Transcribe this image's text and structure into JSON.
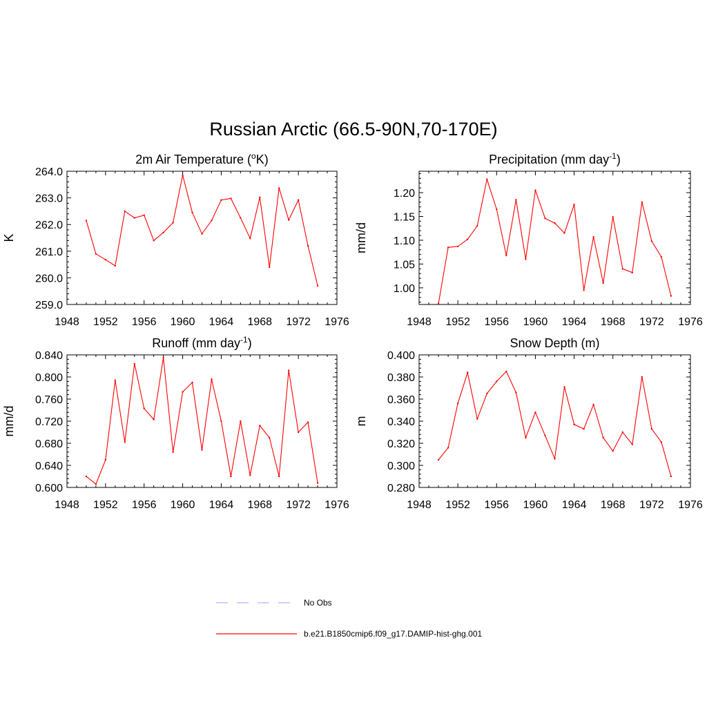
{
  "title": "Russian Arctic (66.5-90N,70-170E)",
  "colors": {
    "model": "#ff0000",
    "obs": "#b3b3ff",
    "axis": "#000000"
  },
  "legend": {
    "placement": "bottom-center",
    "items": [
      {
        "label": "No Obs",
        "style": "dashed",
        "color": "#b3b3ff"
      },
      {
        "label": "b.e21.B1850cmip6.f09_g17.DAMIP-hist-ghg.001",
        "style": "solid",
        "color": "#ff0000"
      }
    ]
  },
  "chart_data": [
    {
      "type": "line",
      "title": "2m Air Temperature (",
      "title_sup": "o",
      "title_tail": "K)",
      "ylabel": "K",
      "xlim": [
        1948,
        1976
      ],
      "ylim": [
        259.0,
        264.0
      ],
      "xticks": [
        "1948",
        "1952",
        "1956",
        "1960",
        "1964",
        "1968",
        "1972",
        "1976"
      ],
      "yticks": [
        "259.0",
        "260.0",
        "261.0",
        "262.0",
        "263.0",
        "264.0"
      ],
      "x": [
        1950,
        1951,
        1952,
        1953,
        1954,
        1955,
        1956,
        1957,
        1958,
        1959,
        1960,
        1961,
        1962,
        1963,
        1964,
        1965,
        1966,
        1967,
        1968,
        1969,
        1970,
        1971,
        1972,
        1973,
        1974
      ],
      "series": [
        {
          "name": "b.e21.B1850cmip6.f09_g17.DAMIP-hist-ghg.001",
          "values": [
            262.15,
            260.9,
            260.68,
            260.45,
            262.5,
            262.25,
            262.35,
            261.4,
            261.7,
            262.07,
            263.85,
            262.45,
            261.65,
            262.15,
            262.92,
            262.98,
            262.25,
            261.48,
            263.02,
            260.4,
            263.37,
            262.17,
            262.92,
            261.2,
            259.7
          ]
        }
      ]
    },
    {
      "type": "line",
      "title": "Precipitation (mm day",
      "title_sup": "-1",
      "title_tail": ")",
      "ylabel": "mm/d",
      "xlim": [
        1948,
        1976
      ],
      "ylim": [
        0.965,
        1.245
      ],
      "xticks": [
        "1948",
        "1952",
        "1956",
        "1960",
        "1964",
        "1968",
        "1972",
        "1976"
      ],
      "yticks": [
        "1.00",
        "1.05",
        "1.10",
        "1.15",
        "1.20"
      ],
      "x": [
        1950,
        1951,
        1952,
        1953,
        1954,
        1955,
        1956,
        1957,
        1958,
        1959,
        1960,
        1961,
        1962,
        1963,
        1964,
        1965,
        1966,
        1967,
        1968,
        1969,
        1970,
        1971,
        1972,
        1973,
        1974
      ],
      "series": [
        {
          "name": "b.e21.B1850cmip6.f09_g17.DAMIP-hist-ghg.001",
          "values": [
            0.967,
            1.085,
            1.087,
            1.102,
            1.13,
            1.228,
            1.165,
            1.068,
            1.185,
            1.06,
            1.205,
            1.146,
            1.136,
            1.115,
            1.175,
            0.995,
            1.107,
            1.01,
            1.149,
            1.04,
            1.032,
            1.18,
            1.098,
            1.065,
            0.983
          ]
        }
      ]
    },
    {
      "type": "line",
      "title": "Runoff (mm day",
      "title_sup": "-1",
      "title_tail": ")",
      "ylabel": "mm/d",
      "xlim": [
        1948,
        1976
      ],
      "ylim": [
        0.6,
        0.84
      ],
      "xticks": [
        "1948",
        "1952",
        "1956",
        "1960",
        "1964",
        "1968",
        "1972",
        "1976"
      ],
      "yticks": [
        "0.600",
        "0.640",
        "0.680",
        "0.720",
        "0.760",
        "0.800",
        "0.840"
      ],
      "x": [
        1950,
        1951,
        1952,
        1953,
        1954,
        1955,
        1956,
        1957,
        1958,
        1959,
        1960,
        1961,
        1962,
        1963,
        1964,
        1965,
        1966,
        1967,
        1968,
        1969,
        1970,
        1971,
        1972,
        1973,
        1974
      ],
      "series": [
        {
          "name": "b.e21.B1850cmip6.f09_g17.DAMIP-hist-ghg.001",
          "values": [
            0.62,
            0.606,
            0.65,
            0.794,
            0.682,
            0.824,
            0.743,
            0.723,
            0.835,
            0.664,
            0.773,
            0.79,
            0.668,
            0.796,
            0.72,
            0.62,
            0.72,
            0.622,
            0.712,
            0.69,
            0.62,
            0.812,
            0.7,
            0.718,
            0.608
          ]
        }
      ]
    },
    {
      "type": "line",
      "title": "Snow Depth (m)",
      "title_sup": "",
      "title_tail": "",
      "ylabel": "m",
      "xlim": [
        1948,
        1976
      ],
      "ylim": [
        0.28,
        0.4
      ],
      "xticks": [
        "1948",
        "1952",
        "1956",
        "1960",
        "1964",
        "1968",
        "1972",
        "1976"
      ],
      "yticks": [
        "0.280",
        "0.300",
        "0.320",
        "0.340",
        "0.360",
        "0.380",
        "0.400"
      ],
      "x": [
        1950,
        1951,
        1952,
        1953,
        1954,
        1955,
        1956,
        1957,
        1958,
        1959,
        1960,
        1961,
        1962,
        1963,
        1964,
        1965,
        1966,
        1967,
        1968,
        1969,
        1970,
        1971,
        1972,
        1973,
        1974
      ],
      "series": [
        {
          "name": "b.e21.B1850cmip6.f09_g17.DAMIP-hist-ghg.001",
          "values": [
            0.305,
            0.316,
            0.356,
            0.384,
            0.342,
            0.365,
            0.376,
            0.385,
            0.366,
            0.325,
            0.348,
            0.327,
            0.306,
            0.371,
            0.337,
            0.333,
            0.355,
            0.325,
            0.313,
            0.33,
            0.319,
            0.38,
            0.333,
            0.321,
            0.29
          ]
        }
      ]
    }
  ]
}
